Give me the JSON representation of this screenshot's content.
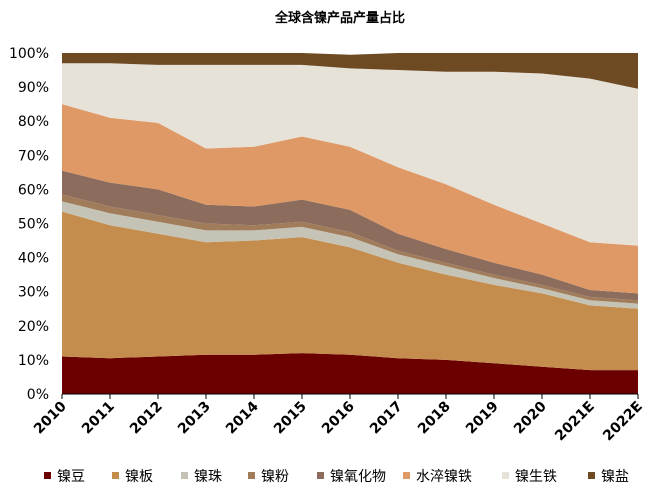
{
  "chart_data": {
    "type": "area",
    "stacked": true,
    "title": "全球含镍产品产量占比",
    "xlabel": "",
    "ylabel": "",
    "ylim": [
      0,
      100
    ],
    "yticks": [
      "0%",
      "10%",
      "20%",
      "30%",
      "40%",
      "50%",
      "60%",
      "70%",
      "80%",
      "90%",
      "100%"
    ],
    "categories": [
      "2010",
      "2011",
      "2012",
      "2013",
      "2014",
      "2015",
      "2016",
      "2017",
      "2018",
      "2019",
      "2020",
      "2021E",
      "2022E"
    ],
    "legend_position": "bottom",
    "grid": false,
    "series": [
      {
        "name": "镍豆",
        "color": "#6b0000",
        "values": [
          11,
          10.5,
          11,
          11.5,
          11.5,
          12,
          11.5,
          10.5,
          10,
          9,
          8,
          7,
          7
        ]
      },
      {
        "name": "镍板",
        "color": "#c48d4e",
        "values": [
          42.5,
          39,
          36,
          33,
          33.5,
          34,
          31.5,
          28,
          25,
          23,
          21.5,
          19,
          18
        ]
      },
      {
        "name": "镍珠",
        "color": "#c5c3b5",
        "values": [
          3,
          3.5,
          3.5,
          3.5,
          3,
          3,
          3,
          2.5,
          2.5,
          2,
          1.5,
          1.5,
          1.5
        ]
      },
      {
        "name": "镍粉",
        "color": "#a07c5a",
        "values": [
          2,
          2,
          2,
          2,
          1.5,
          1.5,
          1.5,
          1,
          1,
          1,
          1,
          1,
          1
        ]
      },
      {
        "name": "镍氧化物",
        "color": "#8c6c5c",
        "values": [
          7,
          7,
          7.5,
          5.5,
          5.5,
          6.5,
          6.5,
          5,
          4,
          3.5,
          3,
          2,
          2
        ]
      },
      {
        "name": "水淬镍铁",
        "color": "#df9966",
        "values": [
          19.5,
          19,
          19.5,
          16.5,
          17.5,
          18.5,
          18.5,
          19.5,
          19,
          17,
          15,
          14,
          14
        ]
      },
      {
        "name": "镍生铁",
        "color": "#e6e2d8",
        "values": [
          12,
          16,
          17,
          24.5,
          24,
          21,
          23,
          28.5,
          33,
          39,
          44,
          48,
          46
        ]
      },
      {
        "name": "镍盐",
        "color": "#6e4a22",
        "values": [
          3,
          3,
          3.5,
          3.5,
          3.5,
          3.5,
          4,
          5,
          5.5,
          5.5,
          6,
          7.5,
          10.5
        ]
      }
    ]
  }
}
